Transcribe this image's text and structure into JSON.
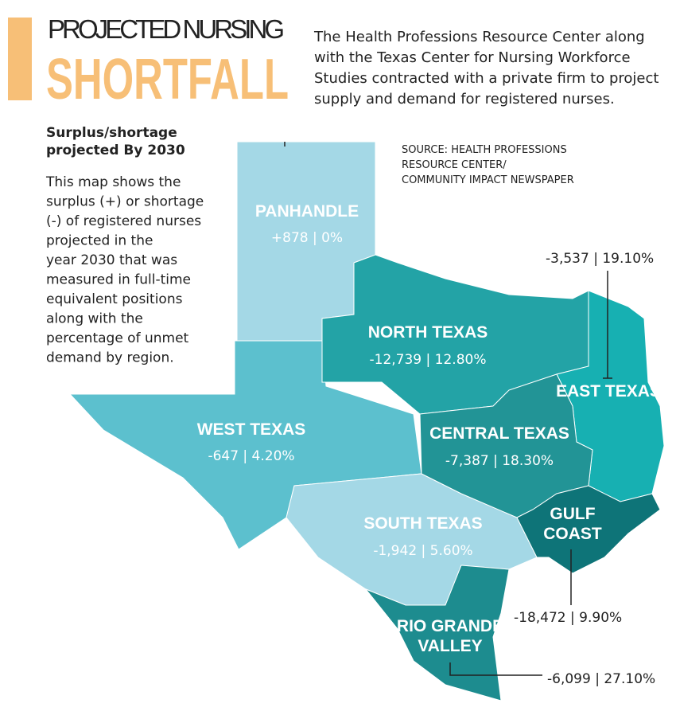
{
  "header": {
    "title_line1": "PROJECTED NURSING",
    "title_line2": "SHORTFALL",
    "description": [
      "The Health Professions Resource Center along",
      "with the Texas Center for Nursing Workforce",
      "Studies contracted with a private firm to project",
      "supply and demand for registered nurses."
    ]
  },
  "sidebar": {
    "subtitle": [
      "Surplus/shortage",
      "projected By 2030"
    ],
    "body": [
      "This map shows the",
      "surplus (+) or shortage",
      "(-) of registered nurses",
      "projected in the",
      "year 2030 that was",
      "measured in full-time",
      "equivalent positions",
      "along with the",
      "percentage of unmet",
      "demand by region."
    ]
  },
  "source": [
    "SOURCE: HEALTH PROFESSIONS",
    "RESOURCE CENTER/",
    "COMMUNITY IMPACT NEWSPAPER"
  ],
  "regions": [
    {
      "name": [
        "PANHANDLE"
      ],
      "stat": "+878 | 0%"
    },
    {
      "name": [
        "NORTH TEXAS"
      ],
      "stat": "-12,739 | 12.80%"
    },
    {
      "name": [
        "EAST TEXAS"
      ],
      "stat": "-3,537 | 19.10%"
    },
    {
      "name": [
        "WEST TEXAS"
      ],
      "stat": "-647 | 4.20%"
    },
    {
      "name": [
        "CENTRAL TEXAS"
      ],
      "stat": "-7,387 | 18.30%"
    },
    {
      "name": [
        "SOUTH TEXAS"
      ],
      "stat": "-1,942 | 5.60%"
    },
    {
      "name": [
        "GULF",
        "COAST"
      ],
      "stat": "-18,472 | 9.90%"
    },
    {
      "name": [
        "RIO GRANDE",
        "VALLEY"
      ],
      "stat": "-6,099 | 27.10%"
    }
  ]
}
